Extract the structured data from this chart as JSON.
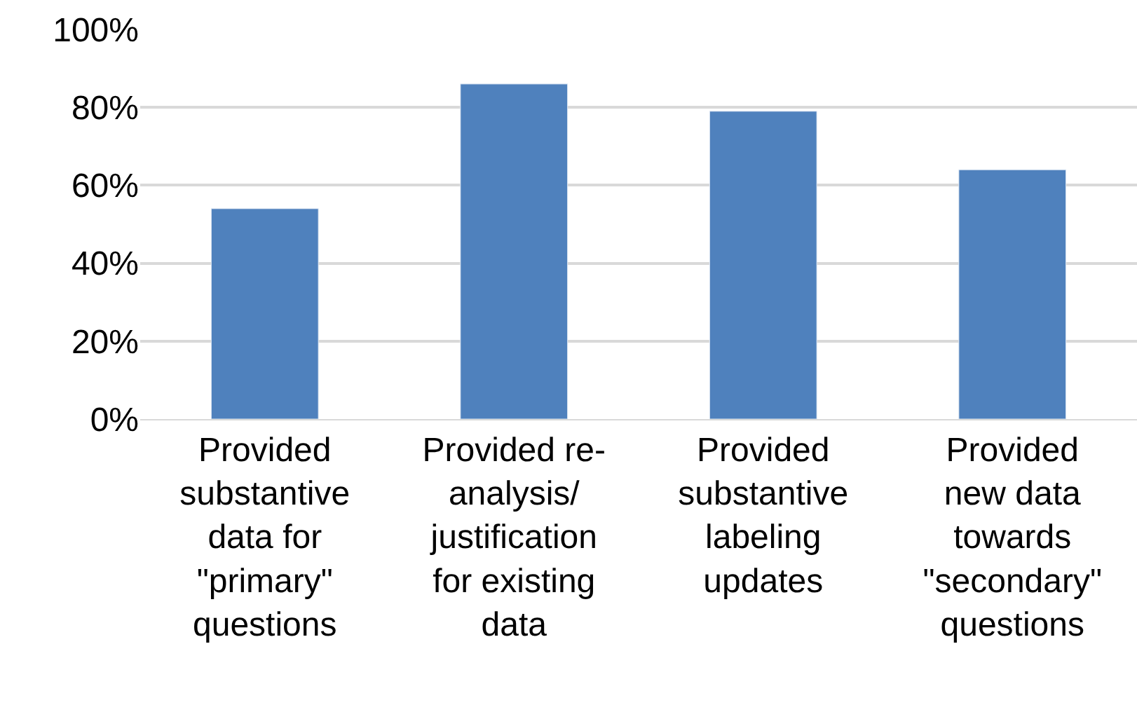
{
  "chart_data": {
    "type": "bar",
    "categories": [
      "Provided\nsubstantive\ndata for\n\"primary\"\nquestions",
      "Provided re-\nanalysis/\njustification\nfor existing\ndata",
      "Provided\nsubstantive\nlabeling\nupdates",
      "Provided\nnew data\ntowards\n\"secondary\"\nquestions"
    ],
    "values": [
      54,
      86,
      79,
      64
    ],
    "color": "#4f81bd",
    "ylim": [
      0,
      100
    ],
    "yticks": [
      {
        "value": 0,
        "label": "0%"
      },
      {
        "value": 20,
        "label": "20%"
      },
      {
        "value": 40,
        "label": "40%"
      },
      {
        "value": 60,
        "label": "60%"
      },
      {
        "value": 80,
        "label": "80%"
      },
      {
        "value": 100,
        "label": "100%"
      }
    ],
    "grid": "y"
  }
}
